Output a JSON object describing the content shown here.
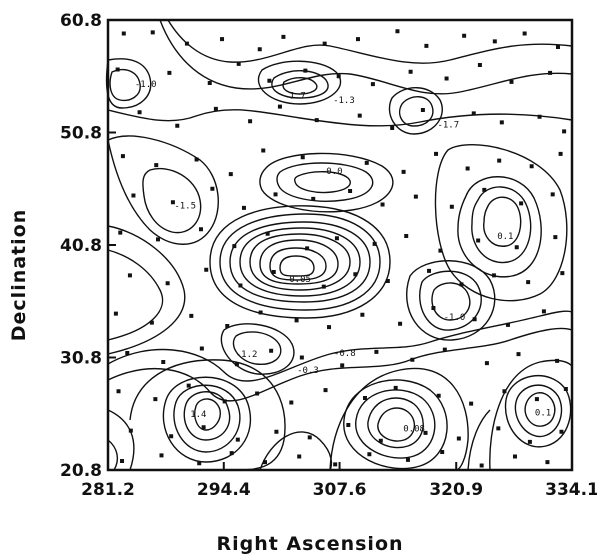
{
  "chart_data": {
    "type": "contour",
    "title": "",
    "xlabel": "Right Ascension",
    "ylabel": "Declination",
    "xlim": [
      281.2,
      334.1
    ],
    "ylim": [
      20.8,
      60.8
    ],
    "x_ticks": [
      "281.2",
      "294.4",
      "307.6",
      "320.9",
      "334.1"
    ],
    "y_ticks": [
      "20.8",
      "30.8",
      "40.8",
      "50.8",
      "60.8"
    ],
    "grid": false,
    "contour_centers": [
      {
        "label": "-1.0",
        "ra": 285.5,
        "dec": 55.1
      },
      {
        "label": "-1.7",
        "ra": 302.5,
        "dec": 54.1
      },
      {
        "label": "-1.3",
        "ra": 308.1,
        "dec": 53.7
      },
      {
        "label": "-1.7",
        "ra": 320.0,
        "dec": 51.5
      },
      {
        "label": "-1.5",
        "ra": 290.0,
        "dec": 44.3
      },
      {
        "label": "-0.0",
        "ra": 306.7,
        "dec": 47.4
      },
      {
        "label": "0.1",
        "ra": 326.5,
        "dec": 41.6
      },
      {
        "label": "0.05",
        "ra": 303.1,
        "dec": 37.8
      },
      {
        "label": "-1.0",
        "ra": 320.7,
        "dec": 34.4
      },
      {
        "label": "-1.2",
        "ra": 297.0,
        "dec": 31.1
      },
      {
        "label": "-0.3",
        "ra": 304.0,
        "dec": 29.7
      },
      {
        "label": "-0.8",
        "ra": 308.2,
        "dec": 31.2
      },
      {
        "label": "1.4",
        "ra": 291.5,
        "dec": 25.8
      },
      {
        "label": "0.08",
        "ra": 316.1,
        "dec": 24.5
      },
      {
        "label": "0.1",
        "ra": 330.8,
        "dec": 25.9
      }
    ],
    "points": [
      {
        "ra": 283.0,
        "dec": 59.6
      },
      {
        "ra": 286.3,
        "dec": 59.7
      },
      {
        "ra": 290.2,
        "dec": 58.7
      },
      {
        "ra": 294.2,
        "dec": 59.1
      },
      {
        "ra": 298.5,
        "dec": 58.2
      },
      {
        "ra": 301.2,
        "dec": 59.3
      },
      {
        "ra": 305.9,
        "dec": 58.7
      },
      {
        "ra": 309.7,
        "dec": 59.1
      },
      {
        "ra": 314.2,
        "dec": 59.8
      },
      {
        "ra": 317.5,
        "dec": 58.5
      },
      {
        "ra": 321.8,
        "dec": 59.4
      },
      {
        "ra": 325.3,
        "dec": 58.9
      },
      {
        "ra": 328.7,
        "dec": 59.6
      },
      {
        "ra": 332.5,
        "dec": 58.4
      },
      {
        "ra": 282.3,
        "dec": 56.4
      },
      {
        "ra": 288.2,
        "dec": 56.1
      },
      {
        "ra": 292.8,
        "dec": 55.2
      },
      {
        "ra": 296.1,
        "dec": 56.9
      },
      {
        "ra": 299.6,
        "dec": 55.4
      },
      {
        "ra": 303.7,
        "dec": 56.3
      },
      {
        "ra": 307.5,
        "dec": 55.8
      },
      {
        "ra": 311.4,
        "dec": 55.1
      },
      {
        "ra": 315.7,
        "dec": 56.2
      },
      {
        "ra": 319.8,
        "dec": 55.6
      },
      {
        "ra": 323.6,
        "dec": 56.8
      },
      {
        "ra": 327.2,
        "dec": 55.3
      },
      {
        "ra": 331.6,
        "dec": 56.1
      },
      {
        "ra": 284.8,
        "dec": 52.6
      },
      {
        "ra": 289.1,
        "dec": 51.4
      },
      {
        "ra": 293.5,
        "dec": 52.9
      },
      {
        "ra": 297.4,
        "dec": 51.8
      },
      {
        "ra": 300.8,
        "dec": 53.1
      },
      {
        "ra": 305.0,
        "dec": 51.9
      },
      {
        "ra": 309.9,
        "dec": 52.3
      },
      {
        "ra": 313.6,
        "dec": 51.2
      },
      {
        "ra": 317.1,
        "dec": 52.8
      },
      {
        "ra": 322.9,
        "dec": 52.5
      },
      {
        "ra": 326.1,
        "dec": 51.7
      },
      {
        "ra": 330.4,
        "dec": 52.2
      },
      {
        "ra": 333.2,
        "dec": 50.9
      },
      {
        "ra": 282.9,
        "dec": 48.7
      },
      {
        "ra": 286.7,
        "dec": 47.9
      },
      {
        "ra": 291.3,
        "dec": 48.4
      },
      {
        "ra": 295.2,
        "dec": 47.1
      },
      {
        "ra": 298.9,
        "dec": 49.2
      },
      {
        "ra": 303.4,
        "dec": 48.6
      },
      {
        "ra": 310.7,
        "dec": 48.1
      },
      {
        "ra": 314.9,
        "dec": 47.3
      },
      {
        "ra": 318.6,
        "dec": 48.9
      },
      {
        "ra": 322.2,
        "dec": 47.6
      },
      {
        "ra": 325.8,
        "dec": 48.3
      },
      {
        "ra": 329.5,
        "dec": 47.8
      },
      {
        "ra": 332.8,
        "dec": 48.9
      },
      {
        "ra": 284.1,
        "dec": 45.2
      },
      {
        "ra": 288.6,
        "dec": 44.6
      },
      {
        "ra": 293.1,
        "dec": 45.8
      },
      {
        "ra": 296.7,
        "dec": 44.1
      },
      {
        "ra": 300.3,
        "dec": 45.3
      },
      {
        "ra": 304.6,
        "dec": 44.9
      },
      {
        "ra": 308.8,
        "dec": 45.6
      },
      {
        "ra": 312.5,
        "dec": 44.4
      },
      {
        "ra": 316.3,
        "dec": 45.1
      },
      {
        "ra": 320.4,
        "dec": 44.2
      },
      {
        "ra": 324.1,
        "dec": 45.7
      },
      {
        "ra": 328.3,
        "dec": 44.5
      },
      {
        "ra": 331.9,
        "dec": 45.3
      },
      {
        "ra": 282.6,
        "dec": 41.9
      },
      {
        "ra": 286.9,
        "dec": 41.3
      },
      {
        "ra": 291.8,
        "dec": 42.2
      },
      {
        "ra": 295.6,
        "dec": 40.7
      },
      {
        "ra": 299.4,
        "dec": 41.8
      },
      {
        "ra": 303.9,
        "dec": 40.5
      },
      {
        "ra": 307.3,
        "dec": 41.4
      },
      {
        "ra": 311.6,
        "dec": 40.9
      },
      {
        "ra": 315.2,
        "dec": 41.6
      },
      {
        "ra": 319.1,
        "dec": 40.3
      },
      {
        "ra": 323.4,
        "dec": 41.2
      },
      {
        "ra": 327.8,
        "dec": 40.6
      },
      {
        "ra": 332.2,
        "dec": 41.5
      },
      {
        "ra": 283.7,
        "dec": 38.1
      },
      {
        "ra": 288.0,
        "dec": 37.4
      },
      {
        "ra": 292.4,
        "dec": 38.6
      },
      {
        "ra": 296.3,
        "dec": 37.2
      },
      {
        "ra": 300.1,
        "dec": 38.4
      },
      {
        "ra": 305.8,
        "dec": 37.1
      },
      {
        "ra": 309.4,
        "dec": 38.2
      },
      {
        "ra": 313.1,
        "dec": 37.6
      },
      {
        "ra": 317.8,
        "dec": 38.5
      },
      {
        "ra": 321.5,
        "dec": 37.3
      },
      {
        "ra": 325.2,
        "dec": 38.1
      },
      {
        "ra": 329.1,
        "dec": 37.5
      },
      {
        "ra": 333.0,
        "dec": 38.3
      },
      {
        "ra": 282.1,
        "dec": 34.7
      },
      {
        "ra": 286.2,
        "dec": 33.9
      },
      {
        "ra": 290.7,
        "dec": 34.5
      },
      {
        "ra": 294.8,
        "dec": 33.6
      },
      {
        "ra": 298.6,
        "dec": 34.8
      },
      {
        "ra": 302.7,
        "dec": 34.1
      },
      {
        "ra": 306.4,
        "dec": 33.5
      },
      {
        "ra": 310.2,
        "dec": 34.6
      },
      {
        "ra": 314.5,
        "dec": 33.8
      },
      {
        "ra": 318.3,
        "dec": 35.2
      },
      {
        "ra": 323.0,
        "dec": 34.2
      },
      {
        "ra": 326.8,
        "dec": 33.7
      },
      {
        "ra": 330.9,
        "dec": 34.9
      },
      {
        "ra": 283.4,
        "dec": 31.2
      },
      {
        "ra": 287.5,
        "dec": 30.4
      },
      {
        "ra": 291.9,
        "dec": 31.6
      },
      {
        "ra": 295.9,
        "dec": 30.2
      },
      {
        "ra": 299.8,
        "dec": 31.4
      },
      {
        "ra": 303.3,
        "dec": 30.8
      },
      {
        "ra": 307.9,
        "dec": 30.1
      },
      {
        "ra": 311.8,
        "dec": 31.3
      },
      {
        "ra": 315.9,
        "dec": 30.6
      },
      {
        "ra": 319.6,
        "dec": 31.5
      },
      {
        "ra": 324.4,
        "dec": 30.3
      },
      {
        "ra": 328.0,
        "dec": 31.1
      },
      {
        "ra": 332.4,
        "dec": 30.5
      },
      {
        "ra": 282.4,
        "dec": 27.8
      },
      {
        "ra": 286.6,
        "dec": 27.1
      },
      {
        "ra": 290.4,
        "dec": 28.3
      },
      {
        "ra": 294.5,
        "dec": 26.9
      },
      {
        "ra": 298.2,
        "dec": 27.6
      },
      {
        "ra": 302.1,
        "dec": 26.8
      },
      {
        "ra": 306.0,
        "dec": 27.9
      },
      {
        "ra": 310.5,
        "dec": 27.2
      },
      {
        "ra": 314.0,
        "dec": 28.1
      },
      {
        "ra": 318.9,
        "dec": 27.4
      },
      {
        "ra": 322.6,
        "dec": 26.7
      },
      {
        "ra": 326.4,
        "dec": 27.8
      },
      {
        "ra": 330.1,
        "dec": 27.1
      },
      {
        "ra": 333.4,
        "dec": 28.0
      },
      {
        "ra": 283.8,
        "dec": 24.3
      },
      {
        "ra": 288.4,
        "dec": 23.8
      },
      {
        "ra": 292.1,
        "dec": 24.6
      },
      {
        "ra": 296.0,
        "dec": 23.5
      },
      {
        "ra": 300.4,
        "dec": 24.2
      },
      {
        "ra": 304.2,
        "dec": 23.7
      },
      {
        "ra": 308.6,
        "dec": 24.8
      },
      {
        "ra": 312.3,
        "dec": 23.4
      },
      {
        "ra": 317.4,
        "dec": 24.1
      },
      {
        "ra": 321.2,
        "dec": 23.6
      },
      {
        "ra": 325.7,
        "dec": 24.5
      },
      {
        "ra": 329.3,
        "dec": 23.3
      },
      {
        "ra": 332.9,
        "dec": 24.2
      },
      {
        "ra": 282.8,
        "dec": 21.6
      },
      {
        "ra": 287.3,
        "dec": 22.1
      },
      {
        "ra": 291.6,
        "dec": 21.4
      },
      {
        "ra": 295.3,
        "dec": 22.3
      },
      {
        "ra": 299.1,
        "dec": 21.5
      },
      {
        "ra": 303.0,
        "dec": 22.0
      },
      {
        "ra": 307.1,
        "dec": 21.3
      },
      {
        "ra": 311.0,
        "dec": 22.2
      },
      {
        "ra": 315.4,
        "dec": 21.7
      },
      {
        "ra": 319.3,
        "dec": 22.4
      },
      {
        "ra": 323.8,
        "dec": 21.2
      },
      {
        "ra": 327.6,
        "dec": 22.0
      },
      {
        "ra": 331.3,
        "dec": 21.5
      }
    ]
  }
}
